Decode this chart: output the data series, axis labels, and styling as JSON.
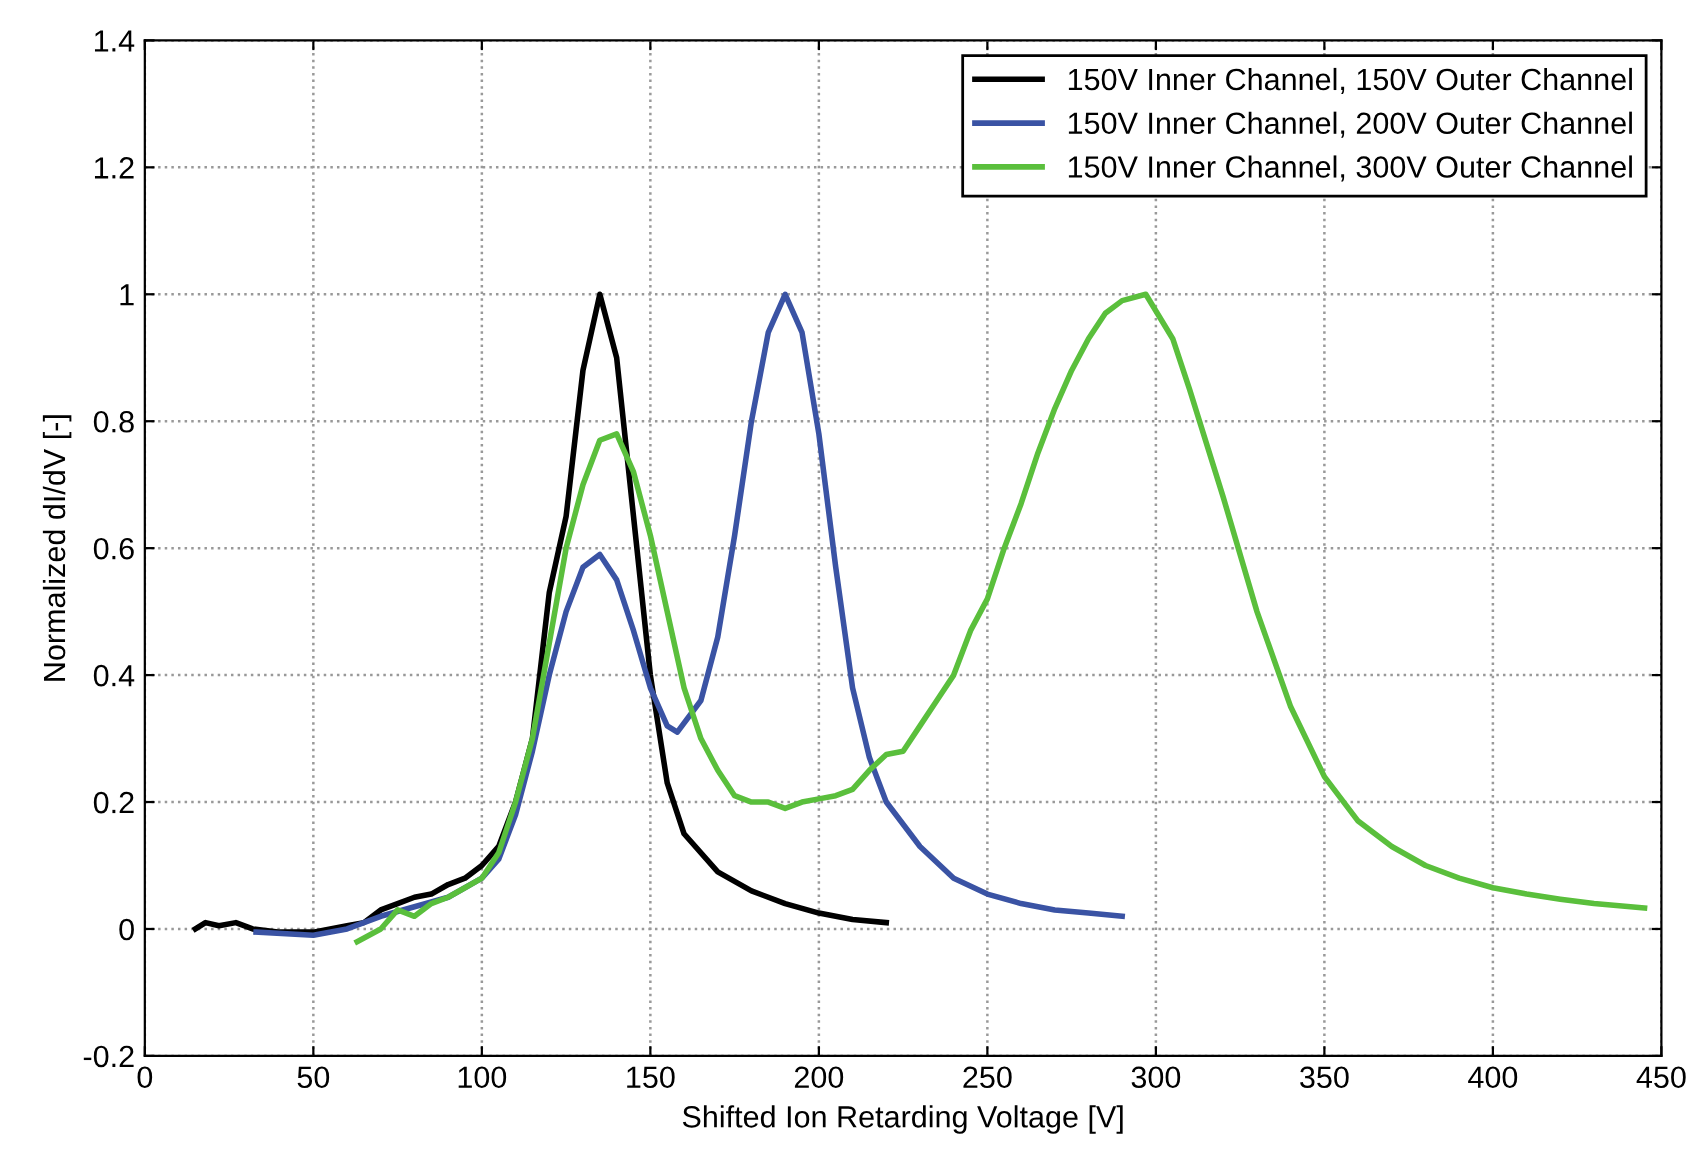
{
  "chart_data": {
    "type": "line",
    "xlabel": "Shifted Ion Retarding Voltage [V]",
    "ylabel": "Normalized dI/dV [-]",
    "xlim": [
      0,
      450
    ],
    "xticks": [
      0,
      50,
      100,
      150,
      200,
      250,
      300,
      350,
      400,
      450
    ],
    "ylim": [
      -0.2,
      1.4
    ],
    "yticks": [
      -0.2,
      0,
      0.2,
      0.4,
      0.6,
      0.8,
      1,
      1.2,
      1.4
    ],
    "grid": true,
    "legend": "top right",
    "line_style": "solid",
    "marker": "none",
    "series": [
      {
        "name": "150V Inner Channel, 150V Outer Channel",
        "color": "#000000",
        "x": [
          15,
          18,
          22,
          27,
          32,
          40,
          50,
          60,
          65,
          70,
          75,
          80,
          85,
          90,
          95,
          100,
          105,
          110,
          115,
          120,
          125,
          130,
          135,
          140,
          145,
          150,
          155,
          160,
          170,
          180,
          190,
          200,
          210,
          220
        ],
        "values": [
          0,
          0.01,
          0.005,
          0.01,
          0.0,
          -0.005,
          -0.005,
          0.005,
          0.01,
          0.03,
          0.04,
          0.05,
          0.055,
          0.07,
          0.08,
          0.1,
          0.13,
          0.2,
          0.3,
          0.53,
          0.65,
          0.88,
          1.0,
          0.9,
          0.65,
          0.4,
          0.23,
          0.15,
          0.09,
          0.06,
          0.04,
          0.025,
          0.015,
          0.01
        ]
      },
      {
        "name": "150V Inner Channel, 200V Outer Channel",
        "color": "#3a53a4",
        "x": [
          33,
          50,
          60,
          70,
          80,
          90,
          100,
          105,
          110,
          115,
          120,
          125,
          130,
          135,
          140,
          145,
          150,
          155,
          158,
          165,
          170,
          175,
          180,
          185,
          190,
          195,
          200,
          205,
          210,
          215,
          220,
          230,
          240,
          250,
          260,
          270,
          280,
          290
        ],
        "values": [
          -0.005,
          -0.01,
          0.0,
          0.02,
          0.035,
          0.05,
          0.08,
          0.11,
          0.18,
          0.28,
          0.4,
          0.5,
          0.57,
          0.59,
          0.55,
          0.47,
          0.38,
          0.32,
          0.31,
          0.36,
          0.46,
          0.62,
          0.8,
          0.94,
          1.0,
          0.94,
          0.78,
          0.57,
          0.38,
          0.27,
          0.2,
          0.13,
          0.08,
          0.055,
          0.04,
          0.03,
          0.025,
          0.02
        ]
      },
      {
        "name": "150V Inner Channel, 300V Outer Channel",
        "color": "#5abf3c",
        "x": [
          63,
          70,
          75,
          80,
          85,
          90,
          95,
          100,
          105,
          110,
          115,
          120,
          125,
          130,
          135,
          140,
          145,
          150,
          155,
          160,
          165,
          170,
          175,
          180,
          185,
          190,
          195,
          200,
          205,
          210,
          215,
          220,
          225,
          230,
          235,
          240,
          245,
          250,
          255,
          260,
          265,
          270,
          275,
          280,
          285,
          290,
          297,
          305,
          310,
          320,
          330,
          340,
          350,
          360,
          370,
          380,
          390,
          400,
          410,
          420,
          430,
          445
        ],
        "values": [
          -0.02,
          0.0,
          0.03,
          0.02,
          0.04,
          0.05,
          0.065,
          0.08,
          0.12,
          0.2,
          0.3,
          0.45,
          0.6,
          0.7,
          0.77,
          0.78,
          0.72,
          0.62,
          0.5,
          0.38,
          0.3,
          0.25,
          0.21,
          0.2,
          0.2,
          0.19,
          0.2,
          0.205,
          0.21,
          0.22,
          0.25,
          0.275,
          0.28,
          0.32,
          0.36,
          0.4,
          0.47,
          0.52,
          0.6,
          0.67,
          0.75,
          0.82,
          0.88,
          0.93,
          0.97,
          0.99,
          1.0,
          0.93,
          0.85,
          0.68,
          0.5,
          0.35,
          0.24,
          0.17,
          0.13,
          0.1,
          0.08,
          0.065,
          0.055,
          0.047,
          0.04,
          0.033
        ]
      }
    ]
  }
}
